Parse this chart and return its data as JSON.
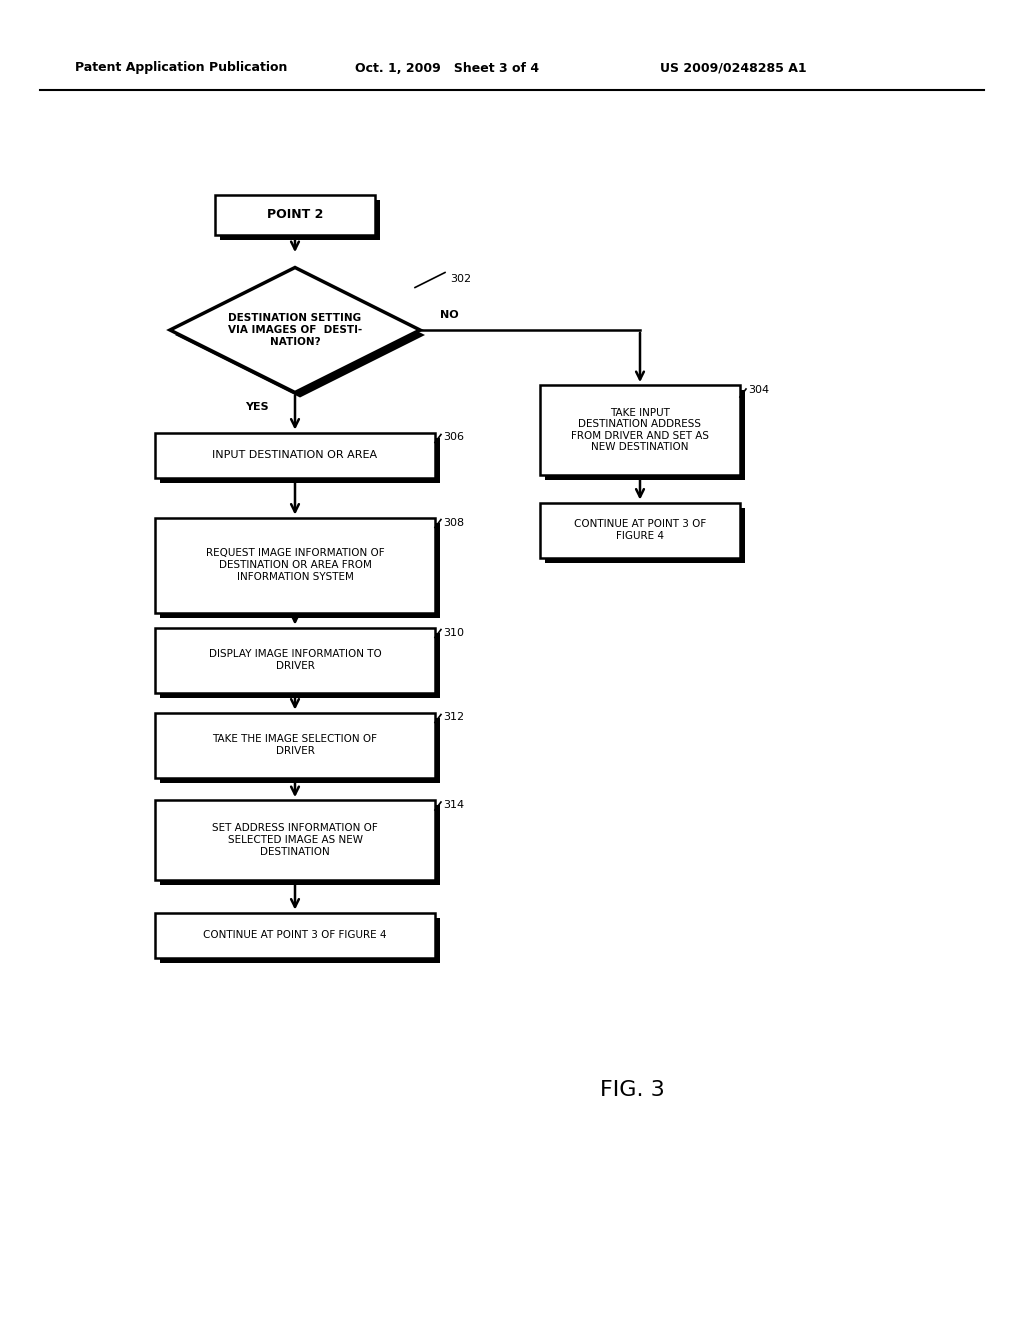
{
  "bg_color": "#ffffff",
  "header_left": "Patent Application Publication",
  "header_center": "Oct. 1, 2009   Sheet 3 of 4",
  "header_right": "US 2009/0248285 A1",
  "fig_label": "FIG. 3",
  "start_box": "POINT 2",
  "diamond_text": "DESTINATION SETTING\nVIA IMAGES OF  DESTI-\nNATION?",
  "diamond_label": "302",
  "yes_label": "YES",
  "no_label": "NO",
  "box304_text": "TAKE INPUT\nDESTINATION ADDRESS\nFROM DRIVER AND SET AS\nNEW DESTINATION",
  "box304_label": "304",
  "box305_text": "CONTINUE AT POINT 3 OF\nFIGURE 4",
  "box306_text": "INPUT DESTINATION OR AREA",
  "box306_label": "306",
  "box308_text": "REQUEST IMAGE INFORMATION OF\nDESTINATION OR AREA FROM\nINFORMATION SYSTEM",
  "box308_label": "308",
  "box310_text": "DISPLAY IMAGE INFORMATION TO\nDRIVER",
  "box310_label": "310",
  "box312_text": "TAKE THE IMAGE SELECTION OF\nDRIVER",
  "box312_label": "312",
  "box314_text": "SET ADDRESS INFORMATION OF\nSELECTED IMAGE AS NEW\nDESTINATION",
  "box314_label": "314",
  "box316_text": "CONTINUE AT POINT 3 OF FIGURE 4"
}
